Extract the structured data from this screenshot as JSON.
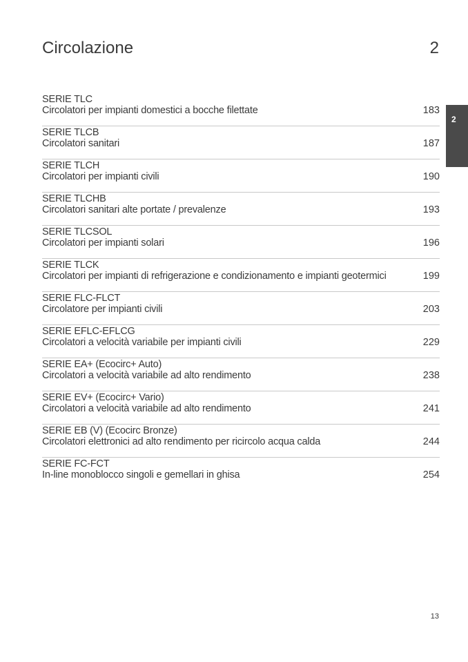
{
  "header": {
    "title": "Circolazione",
    "chapter": "2"
  },
  "side_tab": {
    "label": "2",
    "color": "#4a4a4a"
  },
  "toc": [
    {
      "serie": "SERIE TLC",
      "desc": "Circolatori per impianti domestici a bocche filettate",
      "page": "183"
    },
    {
      "serie": "SERIE TLCB",
      "desc": "Circolatori sanitari",
      "page": "187"
    },
    {
      "serie": "SERIE TLCH",
      "desc": "Circolatori per impianti civili",
      "page": "190"
    },
    {
      "serie": "SERIE TLCHB",
      "desc": "Circolatori sanitari alte portate / prevalenze",
      "page": "193"
    },
    {
      "serie": "SERIE TLCSOL",
      "desc": "Circolatori per impianti solari",
      "page": "196"
    },
    {
      "serie": "SERIE TLCK",
      "desc": "Circolatori per impianti di refrigerazione e condizionamento e impianti geotermici",
      "page": "199"
    },
    {
      "serie": "SERIE FLC-FLCT",
      "desc": "Circolatore per impianti civili",
      "page": "203"
    },
    {
      "serie": "SERIE EFLC-EFLCG",
      "desc": "Circolatori a velocità variabile per impianti civili",
      "page": "229"
    },
    {
      "serie": "SERIE EA+ (Ecocirc+ Auto)",
      "desc": "Circolatori a velocità variabile ad alto rendimento",
      "page": "238"
    },
    {
      "serie": "SERIE EV+ (Ecocirc+ Vario)",
      "desc": "Circolatori a velocità variabile ad alto rendimento",
      "page": "241"
    },
    {
      "serie": "SERIE EB (V) (Ecocirc Bronze)",
      "desc": "Circolatori elettronici ad alto rendimento per ricircolo acqua calda",
      "page": "244"
    },
    {
      "serie": "SERIE FC-FCT",
      "desc": "In-line monoblocco singoli e gemellari in ghisa",
      "page": "254"
    }
  ],
  "footer": {
    "page_number": "13"
  }
}
